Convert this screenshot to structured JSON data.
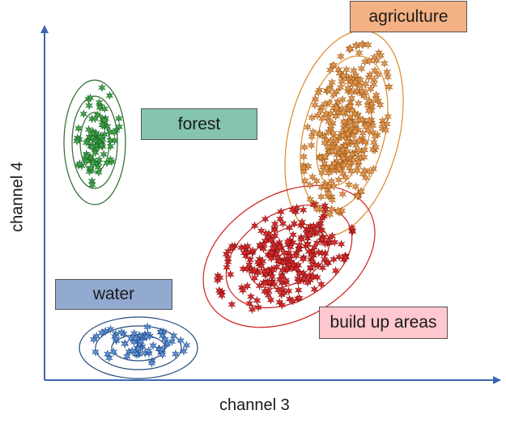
{
  "axes": {
    "x_label": "channel 3",
    "y_label": "channel 4",
    "color": "#3c66b1"
  },
  "classes": [
    {
      "name": "agriculture",
      "label_bg": "#f4b183",
      "line": "#dd8a2a",
      "marker": "#e29a52",
      "marker_stroke": "#a85f1c"
    },
    {
      "name": "forest",
      "label_bg": "#86c5ad",
      "line": "#2d6b2d",
      "marker": "#3fa84a",
      "marker_stroke": "#1f6a28"
    },
    {
      "name": "water",
      "label_bg": "#92a9d0",
      "line": "#254d82",
      "marker": "#5e93d6",
      "marker_stroke": "#234f8c"
    },
    {
      "name": "build up areas",
      "label_bg": "#ffc7ce",
      "line": "#d11d1d",
      "marker": "#e0292b",
      "marker_stroke": "#8a1414"
    }
  ]
}
